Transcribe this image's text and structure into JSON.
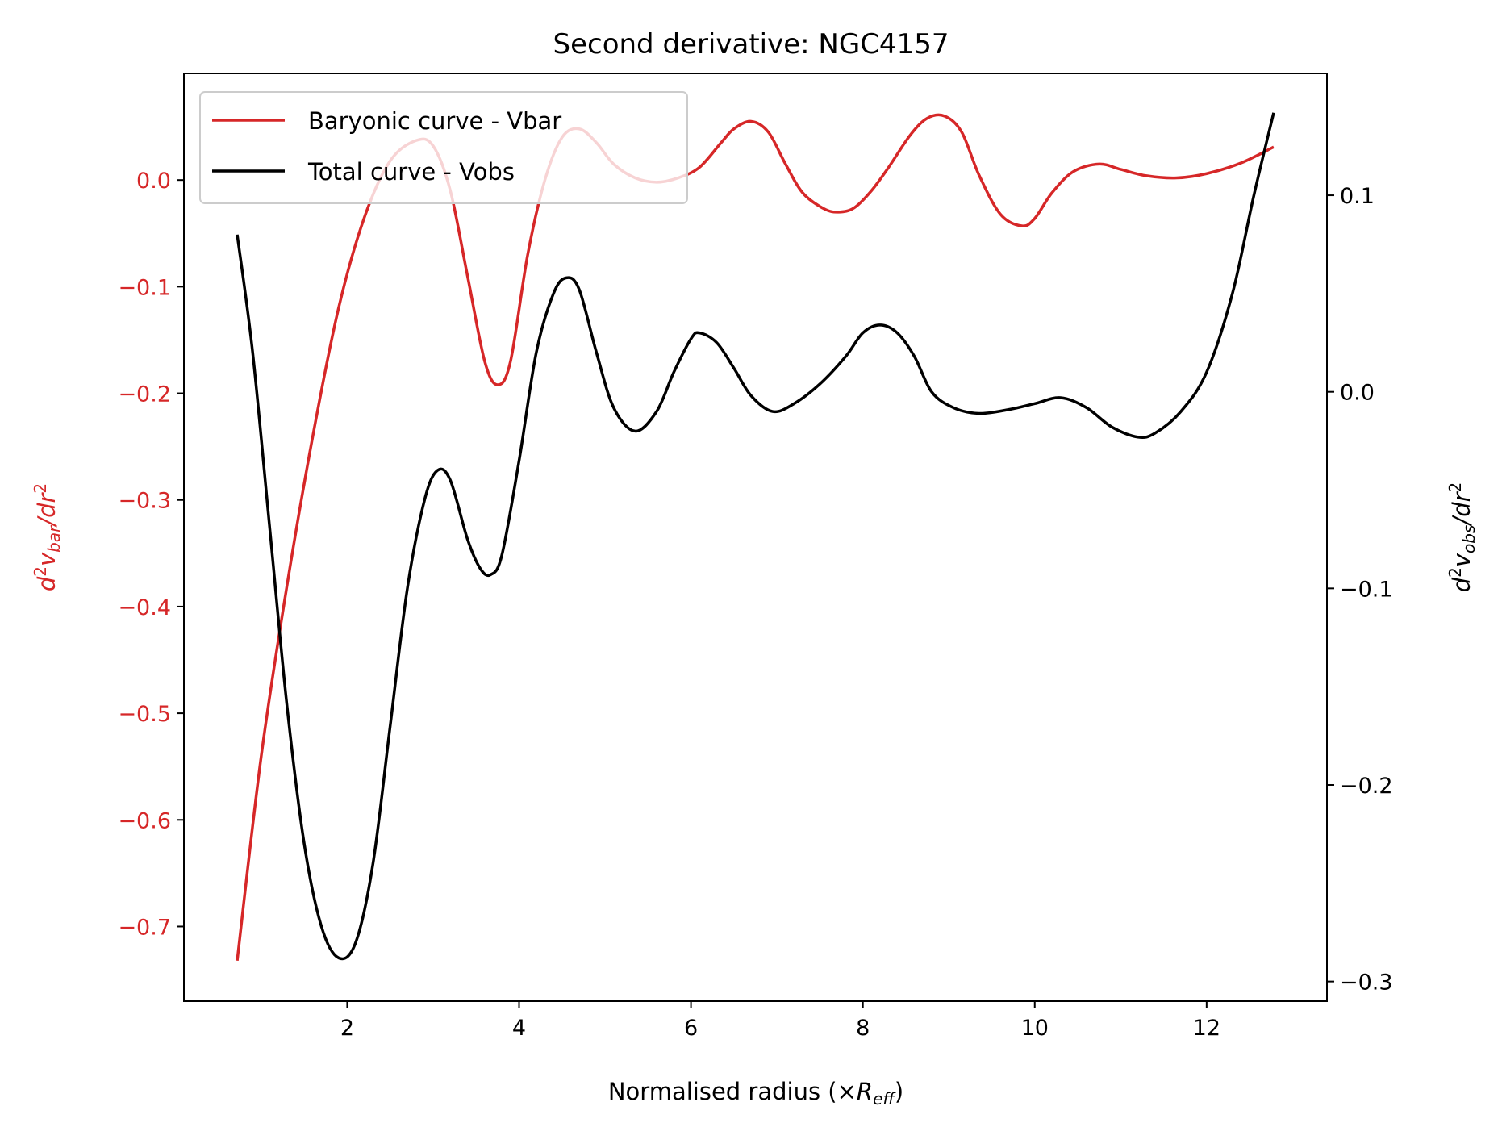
{
  "chart_data": {
    "type": "line",
    "title": "Second derivative: NGC4157",
    "xlabel": {
      "main": "Normalised radius (×",
      "var": "R",
      "sub": "eff",
      "close": ")"
    },
    "ylabel_left": {
      "d": "d",
      "sup1": "2",
      "v": "v",
      "sub": "bar",
      "rest": "/dr",
      "sup2": "2"
    },
    "ylabel_right": {
      "d": "d",
      "sup1": "2",
      "v": "v",
      "sub": "obs",
      "rest": "/dr",
      "sup2": "2"
    },
    "xlim": [
      0.1,
      13.4
    ],
    "ylim_left": [
      -0.77,
      0.1
    ],
    "ylim_right": [
      -0.31,
      0.162
    ],
    "x_ticks": [
      2,
      4,
      6,
      8,
      10,
      12
    ],
    "x_tick_labels": [
      "2",
      "4",
      "6",
      "8",
      "10",
      "12"
    ],
    "y_ticks_left": [
      0.0,
      -0.1,
      -0.2,
      -0.3,
      -0.4,
      -0.5,
      -0.6,
      -0.7
    ],
    "y_tick_labels_left": [
      "0.0",
      "−0.1",
      "−0.2",
      "−0.3",
      "−0.4",
      "−0.5",
      "−0.6",
      "−0.7"
    ],
    "y_ticks_right": [
      0.1,
      0.0,
      -0.1,
      -0.2,
      -0.3
    ],
    "y_tick_labels_right": [
      "0.1",
      "0.0",
      "−0.1",
      "−0.2",
      "−0.3"
    ],
    "legend_position": "top-left",
    "grid": false,
    "colors": {
      "vbar": "#d62728",
      "vobs": "#000000",
      "left_axis": "#d62728",
      "right_axis": "#000000"
    },
    "series": [
      {
        "name": "Baryonic curve - Vbar",
        "axis": "left",
        "color": "#d62728",
        "points": [
          [
            0.72,
            -0.732
          ],
          [
            1.0,
            -0.54
          ],
          [
            1.3,
            -0.38
          ],
          [
            1.6,
            -0.24
          ],
          [
            1.9,
            -0.12
          ],
          [
            2.2,
            -0.035
          ],
          [
            2.5,
            0.018
          ],
          [
            2.8,
            0.037
          ],
          [
            3.0,
            0.032
          ],
          [
            3.2,
            -0.01
          ],
          [
            3.4,
            -0.09
          ],
          [
            3.6,
            -0.17
          ],
          [
            3.75,
            -0.192
          ],
          [
            3.9,
            -0.17
          ],
          [
            4.1,
            -0.07
          ],
          [
            4.3,
            0.0
          ],
          [
            4.5,
            0.04
          ],
          [
            4.7,
            0.048
          ],
          [
            4.9,
            0.035
          ],
          [
            5.1,
            0.015
          ],
          [
            5.35,
            0.002
          ],
          [
            5.6,
            -0.002
          ],
          [
            5.85,
            0.002
          ],
          [
            6.1,
            0.012
          ],
          [
            6.35,
            0.035
          ],
          [
            6.5,
            0.048
          ],
          [
            6.7,
            0.055
          ],
          [
            6.9,
            0.045
          ],
          [
            7.1,
            0.015
          ],
          [
            7.3,
            -0.012
          ],
          [
            7.55,
            -0.027
          ],
          [
            7.72,
            -0.03
          ],
          [
            7.9,
            -0.026
          ],
          [
            8.1,
            -0.01
          ],
          [
            8.3,
            0.012
          ],
          [
            8.55,
            0.042
          ],
          [
            8.75,
            0.058
          ],
          [
            8.95,
            0.06
          ],
          [
            9.15,
            0.045
          ],
          [
            9.35,
            0.005
          ],
          [
            9.6,
            -0.032
          ],
          [
            9.85,
            -0.043
          ],
          [
            10.0,
            -0.036
          ],
          [
            10.2,
            -0.012
          ],
          [
            10.45,
            0.008
          ],
          [
            10.75,
            0.015
          ],
          [
            11.0,
            0.01
          ],
          [
            11.3,
            0.004
          ],
          [
            11.65,
            0.002
          ],
          [
            12.0,
            0.006
          ],
          [
            12.4,
            0.016
          ],
          [
            12.78,
            0.031
          ]
        ]
      },
      {
        "name": "Total curve - Vobs",
        "axis": "right",
        "color": "#000000",
        "points": [
          [
            0.72,
            0.08
          ],
          [
            0.9,
            0.02
          ],
          [
            1.1,
            -0.07
          ],
          [
            1.3,
            -0.16
          ],
          [
            1.5,
            -0.23
          ],
          [
            1.7,
            -0.272
          ],
          [
            1.9,
            -0.288
          ],
          [
            2.1,
            -0.28
          ],
          [
            2.3,
            -0.24
          ],
          [
            2.5,
            -0.17
          ],
          [
            2.7,
            -0.1
          ],
          [
            2.9,
            -0.055
          ],
          [
            3.05,
            -0.04
          ],
          [
            3.2,
            -0.045
          ],
          [
            3.4,
            -0.075
          ],
          [
            3.55,
            -0.09
          ],
          [
            3.67,
            -0.093
          ],
          [
            3.8,
            -0.083
          ],
          [
            4.0,
            -0.035
          ],
          [
            4.2,
            0.02
          ],
          [
            4.4,
            0.05
          ],
          [
            4.55,
            0.058
          ],
          [
            4.7,
            0.052
          ],
          [
            4.9,
            0.02
          ],
          [
            5.1,
            -0.008
          ],
          [
            5.35,
            -0.02
          ],
          [
            5.6,
            -0.01
          ],
          [
            5.8,
            0.01
          ],
          [
            6.0,
            0.027
          ],
          [
            6.1,
            0.03
          ],
          [
            6.3,
            0.025
          ],
          [
            6.5,
            0.012
          ],
          [
            6.7,
            -0.002
          ],
          [
            6.95,
            -0.01
          ],
          [
            7.2,
            -0.006
          ],
          [
            7.5,
            0.004
          ],
          [
            7.8,
            0.018
          ],
          [
            8.0,
            0.03
          ],
          [
            8.2,
            0.034
          ],
          [
            8.4,
            0.03
          ],
          [
            8.6,
            0.018
          ],
          [
            8.8,
            0.0
          ],
          [
            9.05,
            -0.008
          ],
          [
            9.35,
            -0.011
          ],
          [
            9.7,
            -0.009
          ],
          [
            10.0,
            -0.006
          ],
          [
            10.3,
            -0.003
          ],
          [
            10.6,
            -0.008
          ],
          [
            10.9,
            -0.018
          ],
          [
            11.2,
            -0.023
          ],
          [
            11.4,
            -0.021
          ],
          [
            11.7,
            -0.01
          ],
          [
            12.0,
            0.01
          ],
          [
            12.3,
            0.05
          ],
          [
            12.55,
            0.1
          ],
          [
            12.78,
            0.142
          ]
        ]
      }
    ]
  }
}
